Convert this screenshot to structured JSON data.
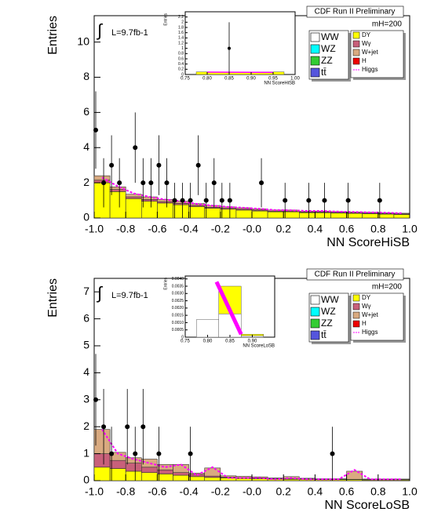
{
  "chart_data": [
    {
      "type": "histogram",
      "title": "CDF Run II Preliminary",
      "mass_label": "mH=200",
      "integral": "∫",
      "lumi_label": "L=9.7fb-1",
      "xlabel": "NN ScoreHiSB",
      "ylabel": "Entries",
      "xlim": [
        -1,
        1
      ],
      "ylim": [
        0,
        11.5
      ],
      "xticks": [
        {
          "value": -1,
          "label": "-1.0"
        },
        -0.8,
        -0.6,
        -0.4,
        -0.2,
        {
          "value": 0,
          "label": "-0.0"
        },
        0.2,
        0.4,
        0.6,
        0.8,
        {
          "value": 1,
          "label": "1.0"
        }
      ],
      "yticks": [
        0,
        2,
        4,
        6,
        8,
        10
      ],
      "bins": [
        -1,
        -0.9,
        -0.8,
        -0.7,
        -0.6,
        -0.5,
        -0.4,
        -0.3,
        -0.2,
        -0.1,
        0,
        0.1,
        0.2,
        0.3,
        0.4,
        0.5,
        0.6,
        0.7,
        0.8,
        0.9,
        1
      ],
      "series": [
        {
          "name": "DY",
          "color": "#ffff00",
          "values": [
            2.0,
            1.5,
            1.1,
            0.95,
            0.85,
            0.75,
            0.65,
            0.55,
            0.5,
            0.45,
            0.4,
            0.35,
            0.35,
            0.3,
            0.3,
            0.28,
            0.26,
            0.24,
            0.22,
            0.2
          ]
        },
        {
          "name": "Wγ",
          "color": "#c8607a",
          "values": [
            0.15,
            0.12,
            0.1,
            0.1,
            0.08,
            0.08,
            0.07,
            0.06,
            0.05,
            0.05,
            0.05,
            0.04,
            0.04,
            0.04,
            0.04,
            0.03,
            0.03,
            0.03,
            0.03,
            0.03
          ]
        },
        {
          "name": "W+jet",
          "color": "#d9aa80",
          "values": [
            0.25,
            0.15,
            0.15,
            0.15,
            0.12,
            0.12,
            0.1,
            0.1,
            0.08,
            0.08,
            0.07,
            0.06,
            0.06,
            0.05,
            0.05,
            0.05,
            0.05,
            0.05,
            0.04,
            0.04
          ]
        }
      ],
      "other_legend": [
        {
          "name": "WW",
          "color": "#ffffff"
        },
        {
          "name": "WZ",
          "color": "#00ffff"
        },
        {
          "name": "ZZ",
          "color": "#33cc33"
        },
        {
          "name": "tt̄",
          "color": "#5555dd"
        },
        {
          "name": "H",
          "color": "#ee0000"
        }
      ],
      "signal": {
        "name": "Higgs",
        "color": "#ff00ff",
        "x": [
          -0.95,
          -0.85,
          -0.75,
          -0.65,
          -0.55,
          -0.45,
          -0.35,
          -0.25,
          -0.15,
          -0.05,
          0.05,
          0.15,
          0.25,
          0.35,
          0.45,
          0.55,
          0.65,
          0.75,
          0.85,
          0.95
        ],
        "values": [
          2.3,
          1.8,
          1.4,
          1.2,
          1.05,
          0.95,
          0.8,
          0.7,
          0.63,
          0.58,
          0.52,
          0.45,
          0.44,
          0.4,
          0.4,
          0.36,
          0.34,
          0.32,
          0.3,
          0.27
        ]
      },
      "data_points": {
        "x": [
          -0.99,
          -0.94,
          -0.89,
          -0.84,
          -0.74,
          -0.69,
          -0.64,
          -0.59,
          -0.54,
          -0.49,
          -0.44,
          -0.39,
          -0.34,
          -0.29,
          -0.24,
          -0.19,
          -0.14,
          0.06,
          0.21,
          0.36,
          0.46,
          0.61,
          0.81
        ],
        "values": [
          5,
          2,
          3,
          2,
          4,
          2,
          2,
          3,
          2,
          1,
          1,
          1,
          3,
          1,
          2,
          1,
          1,
          2,
          1,
          1,
          1,
          1,
          1
        ],
        "errors": [
          2.2,
          1.4,
          1.7,
          1.4,
          2,
          1.4,
          1.4,
          1.7,
          1.4,
          1,
          1,
          1,
          1.7,
          1,
          1.4,
          1,
          1,
          1.4,
          1,
          1,
          1,
          1,
          1
        ]
      },
      "inset": {
        "xlabel": "NN ScoreHiSB",
        "ylabel": "Entries",
        "xlim": [
          0.75,
          1
        ],
        "ylim": [
          0,
          2.4
        ],
        "xticks": [
          0.75,
          {
            "value": 0.8,
            "label": "0.80"
          },
          0.85,
          {
            "value": 0.9,
            "label": "0.90"
          },
          0.95,
          {
            "value": 1,
            "label": "1.00"
          }
        ],
        "yticks": [
          0,
          0.2,
          0.4,
          0.6,
          0.8,
          1,
          1.2,
          1.4,
          1.6,
          1.8,
          2,
          2.2
        ],
        "bins": [
          0.775,
          0.975
        ],
        "series": [
          {
            "name": "DY",
            "color": "#ffff00",
            "values": [
              0.1
            ]
          }
        ],
        "signal": {
          "name": "Higgs",
          "color": "#ff00ff",
          "x": [
            0.8,
            0.95
          ],
          "values": [
            0.09,
            0.08
          ]
        },
        "data_points": {
          "x": [
            0.85
          ],
          "values": [
            1
          ],
          "errors": [
            1
          ]
        }
      }
    },
    {
      "type": "histogram",
      "title": "CDF Run II Preliminary",
      "mass_label": "mH=200",
      "integral": "∫",
      "lumi_label": "L=9.7fb-1",
      "xlabel": "NN ScoreLoSB",
      "ylabel": "Entries",
      "xlim": [
        -1,
        1
      ],
      "ylim": [
        0,
        7.5
      ],
      "xticks": [
        {
          "value": -1,
          "label": "-1.0"
        },
        -0.8,
        -0.6,
        -0.4,
        -0.2,
        {
          "value": 0,
          "label": "-0.0"
        },
        0.2,
        0.4,
        0.6,
        0.8,
        {
          "value": 1,
          "label": "1.0"
        }
      ],
      "yticks": [
        0,
        1,
        2,
        3,
        4,
        5,
        6,
        7
      ],
      "bins": [
        -1,
        -0.9,
        -0.8,
        -0.7,
        -0.6,
        -0.5,
        -0.4,
        -0.3,
        -0.2,
        -0.1,
        0,
        0.1,
        0.2,
        0.3,
        0.4,
        0.5,
        0.6,
        0.7,
        0.8,
        0.9,
        1
      ],
      "series": [
        {
          "name": "DY",
          "color": "#ffff00",
          "values": [
            0.5,
            0.45,
            0.35,
            0.3,
            0.25,
            0.2,
            0.15,
            0.12,
            0.1,
            0.08,
            0.07,
            0.06,
            0.05,
            0.05,
            0.04,
            0.04,
            0.04,
            0.03,
            0.03,
            0.03
          ]
        },
        {
          "name": "Wγ",
          "color": "#c8607a",
          "values": [
            0.5,
            0.3,
            0.3,
            0.2,
            0.15,
            0.1,
            0.08,
            0.05,
            0.03,
            0.03,
            0.02,
            0.02,
            0.02,
            0.02,
            0.01,
            0.01,
            0.01,
            0.01,
            0.01,
            0.01
          ]
        },
        {
          "name": "W+jet",
          "color": "#d9aa80",
          "values": [
            0.9,
            0.3,
            0.2,
            0.3,
            0.2,
            0.3,
            0.05,
            0.3,
            0.05,
            0.05,
            0.05,
            0.02,
            0.08,
            0.02,
            0.02,
            0.02,
            0.3,
            0.02,
            0.02,
            0.02
          ]
        }
      ],
      "other_legend": [
        {
          "name": "WW",
          "color": "#ffffff"
        },
        {
          "name": "WZ",
          "color": "#00ffff"
        },
        {
          "name": "ZZ",
          "color": "#33cc33"
        },
        {
          "name": "tt̄",
          "color": "#5555dd"
        },
        {
          "name": "H",
          "color": "#ee0000"
        }
      ],
      "signal": {
        "name": "Higgs",
        "color": "#ff00ff",
        "x": [
          -0.95,
          -0.85,
          -0.75,
          -0.65,
          -0.55,
          -0.45,
          -0.35,
          -0.25,
          -0.15,
          -0.05,
          0.05,
          0.15,
          0.25,
          0.35,
          0.45,
          0.55,
          0.65,
          0.75,
          0.85,
          0.95
        ],
        "values": [
          1.9,
          1.0,
          0.8,
          0.65,
          0.5,
          0.6,
          0.2,
          0.5,
          0.1,
          0.1,
          0.1,
          0.05,
          0.1,
          0.05,
          0.05,
          0.05,
          0.4,
          0.05,
          0.05,
          0.05
        ]
      },
      "data_points": {
        "x": [
          -0.99,
          -0.94,
          -0.89,
          -0.79,
          -0.74,
          -0.69,
          -0.59,
          -0.39,
          0.51
        ],
        "values": [
          3,
          2,
          1,
          2,
          1,
          2,
          1,
          1,
          1
        ],
        "errors": [
          1.7,
          1.4,
          1,
          1.4,
          1,
          1.4,
          1,
          1,
          1
        ]
      },
      "inset": {
        "xlabel": "NN ScoreLoSB",
        "ylabel": "Entries",
        "xlim": [
          0.75,
          0.95
        ],
        "ylim": [
          0,
          0.0042
        ],
        "xticks": [
          0.75,
          {
            "value": 0.8,
            "label": "0.80"
          },
          0.85,
          {
            "value": 0.9,
            "label": "0.90"
          }
        ],
        "yticks": [
          0,
          0.0005,
          {
            "value": 0.001,
            "label": "0.0010"
          },
          0.0015,
          {
            "value": 0.002,
            "label": "0.0020"
          },
          0.0025,
          {
            "value": 0.003,
            "label": "0.0030"
          },
          0.0035,
          {
            "value": 0.004,
            "label": "0.0040"
          }
        ],
        "bins": [
          0.775,
          0.825,
          0.875,
          0.925
        ],
        "series": [
          {
            "name": "WW",
            "color": "#ffffff",
            "values": [
              0.0012,
              0.0016,
              0.0001
            ]
          },
          {
            "name": "DY",
            "color": "#ffff00",
            "values": [
              0,
              0.0019,
              0.0001
            ]
          }
        ],
        "signal": {
          "name": "Higgs",
          "color": "#ff00ff",
          "x": [
            0.82,
            0.875
          ],
          "values": [
            0.0038,
            0.0002
          ]
        },
        "data_points": {
          "x": [],
          "values": [],
          "errors": []
        }
      }
    }
  ]
}
